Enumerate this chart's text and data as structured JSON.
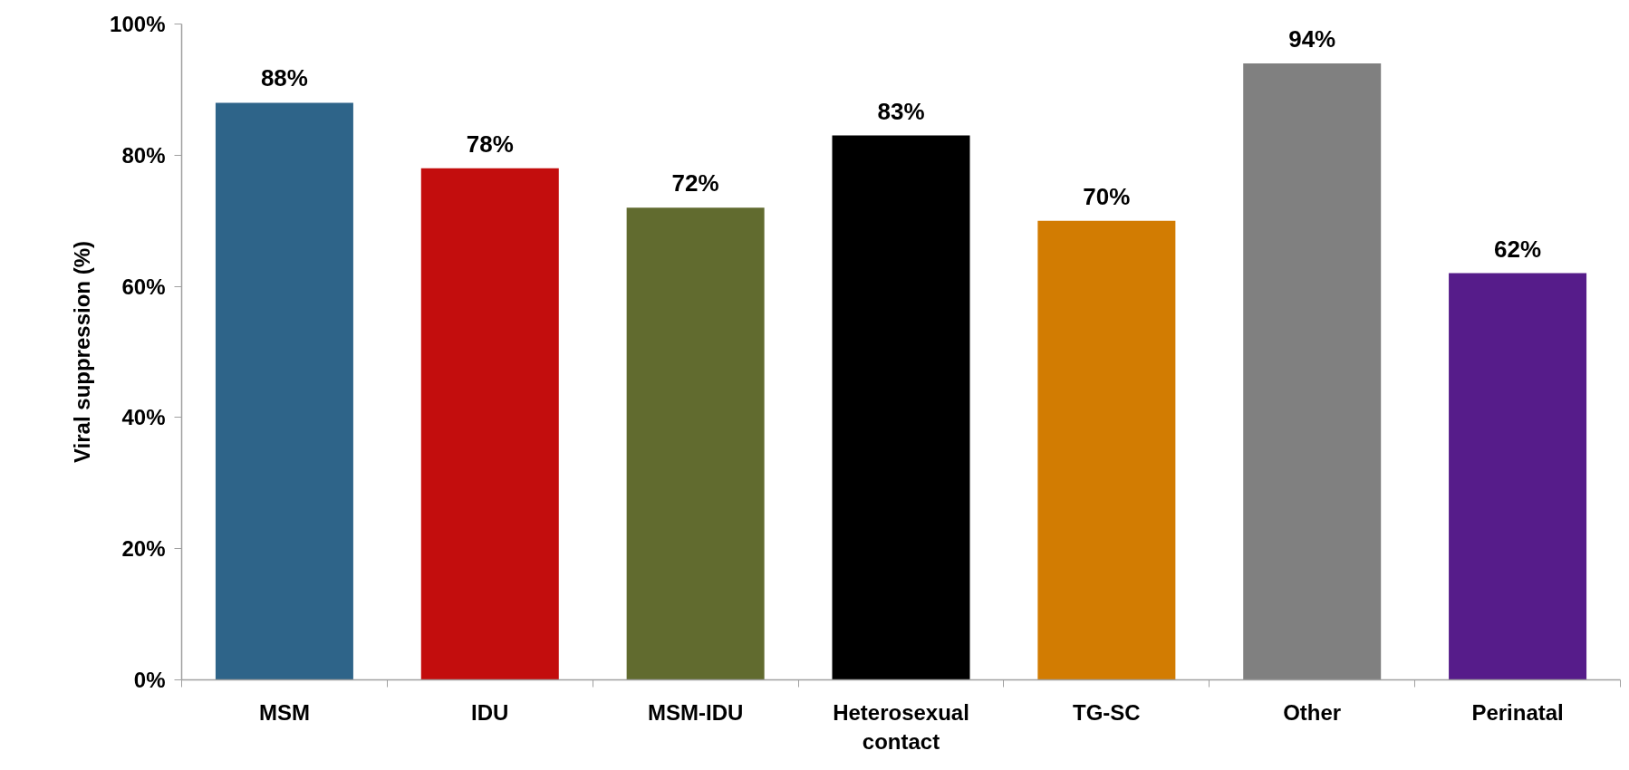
{
  "chart_data": {
    "type": "bar",
    "ylabel": "Viral suppression (%)",
    "categories": [
      "MSM",
      "IDU",
      "MSM-IDU",
      "Heterosexual contact",
      "TG-SC",
      "Other",
      "Perinatal"
    ],
    "values": [
      88,
      78,
      72,
      83,
      70,
      94,
      62
    ],
    "colors": [
      "#2e6489",
      "#c30d0d",
      "#616b2f",
      "#000000",
      "#d27c02",
      "#808080",
      "#561c8a"
    ],
    "value_labels": [
      "88%",
      "78%",
      "72%",
      "83%",
      "70%",
      "94%",
      "62%"
    ],
    "ylim": [
      0,
      100
    ],
    "yticks": [
      {
        "value": 0,
        "label": "0%"
      },
      {
        "value": 20,
        "label": "20%"
      },
      {
        "value": 40,
        "label": "40%"
      },
      {
        "value": 60,
        "label": "60%"
      },
      {
        "value": 80,
        "label": "80%"
      },
      {
        "value": 100,
        "label": "100%"
      }
    ],
    "grid": false
  }
}
